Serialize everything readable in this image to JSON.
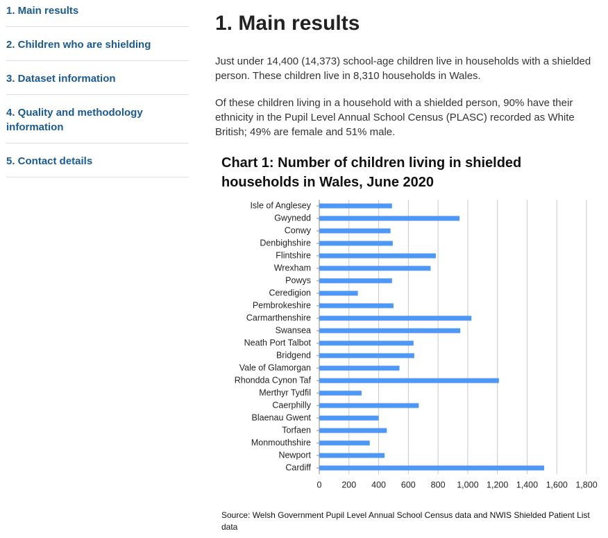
{
  "nav": [
    "1. Main results",
    "2. Children who are shielding",
    "3. Dataset information",
    "4. Quality and methodology information",
    "5. Contact details"
  ],
  "heading": "1. Main results",
  "paragraphs": [
    "Just under 14,400 (14,373) school-age children live in households with a shielded person. These children live in 8,310 households in Wales.",
    "Of these children living in a household with a shielded person, 90% have their ethnicity in the Pupil Level Annual School Census (PLASC) recorded as White British; 49% are female and 51% male."
  ],
  "chart_data": {
    "type": "barh",
    "title": "Chart 1: Number of children living in shielded households in Wales, June 2020",
    "categories": [
      "Isle of Anglesey",
      "Gwynedd",
      "Conwy",
      "Denbighshire",
      "Flintshire",
      "Wrexham",
      "Powys",
      "Ceredigion",
      "Pembrokeshire",
      "Carmarthenshire",
      "Swansea",
      "Neath Port Talbot",
      "Bridgend",
      "Vale of Glamorgan",
      "Rhondda Cynon Taf",
      "Merthyr Tydfil",
      "Caerphilly",
      "Blaenau Gwent",
      "Torfaen",
      "Monmouthshire",
      "Newport",
      "Cardiff"
    ],
    "values": [
      490,
      945,
      480,
      495,
      785,
      750,
      490,
      260,
      500,
      1025,
      950,
      635,
      640,
      540,
      1210,
      285,
      670,
      400,
      455,
      340,
      440,
      1515
    ],
    "color": "#4f97f5",
    "xlim": [
      0,
      1800
    ],
    "xticks": [
      0,
      200,
      400,
      600,
      800,
      {
        "value": 1000,
        "label": "1,000"
      },
      {
        "value": 1200,
        "label": "1,200"
      },
      {
        "value": 1400,
        "label": "1,400"
      },
      {
        "value": 1600,
        "label": "1,600"
      },
      {
        "value": 1800,
        "label": "1,800"
      }
    ],
    "grid": true,
    "source": "Source: Welsh Government Pupil Level Annual School Census data and NWIS Shielded Patient List data"
  }
}
